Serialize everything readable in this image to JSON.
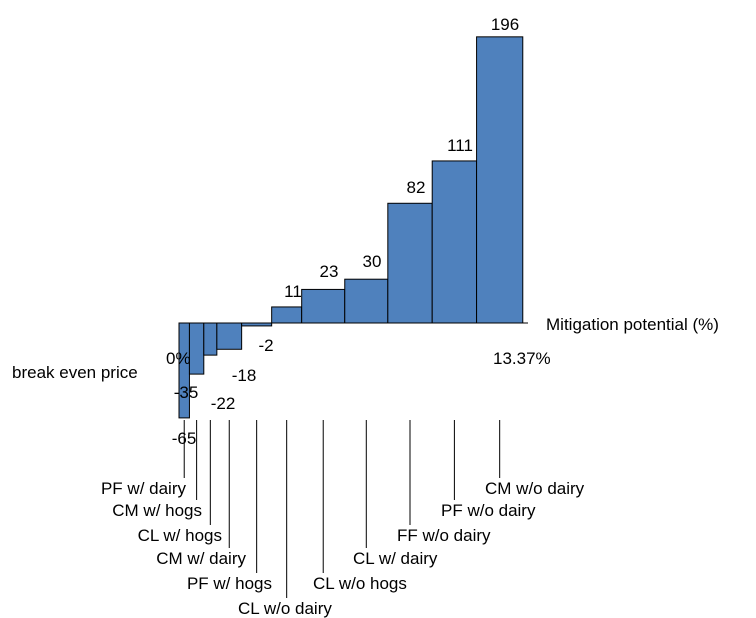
{
  "chart_data": {
    "type": "bar",
    "subtype": "marginal-abatement-cost-curve",
    "xlabel": "Mitigation potential (%)",
    "ylabel": "break even price",
    "x_start_label": "0%",
    "x_end_label": "13.37%",
    "xlim": [
      0,
      13.37
    ],
    "ylim": [
      -65,
      196
    ],
    "grid": false,
    "legend": "none",
    "bar_color": "#4f81bd",
    "bars": [
      {
        "label": "PF w/ dairy",
        "value": -65,
        "width": 0.4
      },
      {
        "label": "CM w/ hogs",
        "value": -35,
        "width": 0.55
      },
      {
        "label": "CL w/ hogs",
        "value": -22,
        "width": 0.5
      },
      {
        "label": "CM w/ dairy",
        "value": -18,
        "width": 0.95
      },
      {
        "label": "PF w/ hogs",
        "value": -2,
        "width": 1.15
      },
      {
        "label": "CL w/o dairy",
        "value": 11,
        "width": 1.15
      },
      {
        "label": "CL w/o hogs",
        "value": 23,
        "width": 1.65
      },
      {
        "label": "CL w/ dairy",
        "value": 30,
        "width": 1.65
      },
      {
        "label": "FF w/o dairy",
        "value": 82,
        "width": 1.7
      },
      {
        "label": "PF w/o dairy",
        "value": 111,
        "width": 1.7
      },
      {
        "label": "CM w/o dairy",
        "value": 196,
        "width": 1.77
      }
    ]
  }
}
